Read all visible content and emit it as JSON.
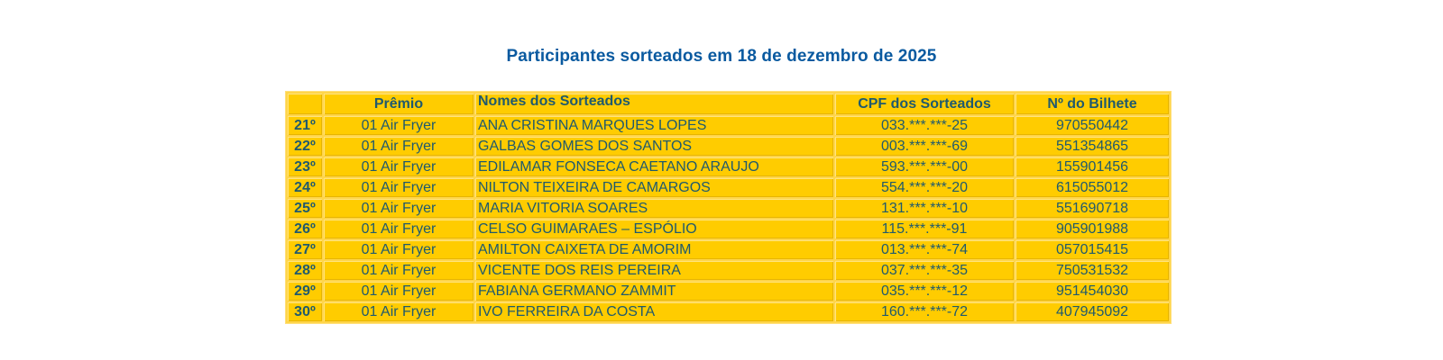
{
  "title": "Participantes sorteados em 18 de dezembro de 2025",
  "table": {
    "headers": {
      "position": "",
      "prize": "Prêmio",
      "names": "Nomes dos Sorteados",
      "cpf": "CPF dos Sorteados",
      "ticket": "Nº do Bilhete"
    },
    "rows": [
      {
        "position": "21º",
        "prize": "01 Air Fryer",
        "name": "ANA CRISTINA MARQUES LOPES",
        "cpf": "033.***.***-25",
        "ticket": "970550442"
      },
      {
        "position": "22º",
        "prize": "01 Air Fryer",
        "name": "GALBAS GOMES DOS SANTOS",
        "cpf": "003.***.***-69",
        "ticket": "551354865"
      },
      {
        "position": "23º",
        "prize": "01 Air Fryer",
        "name": "EDILAMAR FONSECA CAETANO ARAUJO",
        "cpf": "593.***.***-00",
        "ticket": "155901456"
      },
      {
        "position": "24º",
        "prize": "01 Air Fryer",
        "name": "NILTON TEIXEIRA DE CAMARGOS",
        "cpf": "554.***.***-20",
        "ticket": "615055012"
      },
      {
        "position": "25º",
        "prize": "01 Air Fryer",
        "name": "MARIA VITORIA SOARES",
        "cpf": "131.***.***-10",
        "ticket": "551690718"
      },
      {
        "position": "26º",
        "prize": "01 Air Fryer",
        "name": "CELSO GUIMARAES – ESPÓLIO",
        "cpf": "115.***.***-91",
        "ticket": "905901988"
      },
      {
        "position": "27º",
        "prize": "01 Air Fryer",
        "name": "AMILTON CAIXETA DE AMORIM",
        "cpf": "013.***.***-74",
        "ticket": "057015415"
      },
      {
        "position": "28º",
        "prize": "01 Air Fryer",
        "name": "VICENTE DOS REIS PEREIRA",
        "cpf": "037.***.***-35",
        "ticket": "750531532"
      },
      {
        "position": "29º",
        "prize": "01 Air Fryer",
        "name": "FABIANA GERMANO ZAMMIT",
        "cpf": "035.***.***-12",
        "ticket": "951454030"
      },
      {
        "position": "30º",
        "prize": "01 Air Fryer",
        "name": "IVO FERREIRA DA COSTA",
        "cpf": "160.***.***-72",
        "ticket": "407945092"
      }
    ]
  },
  "colors": {
    "title": "#0a5aa0",
    "cell_background": "#ffcc00",
    "cell_text": "#1f5a6e"
  }
}
